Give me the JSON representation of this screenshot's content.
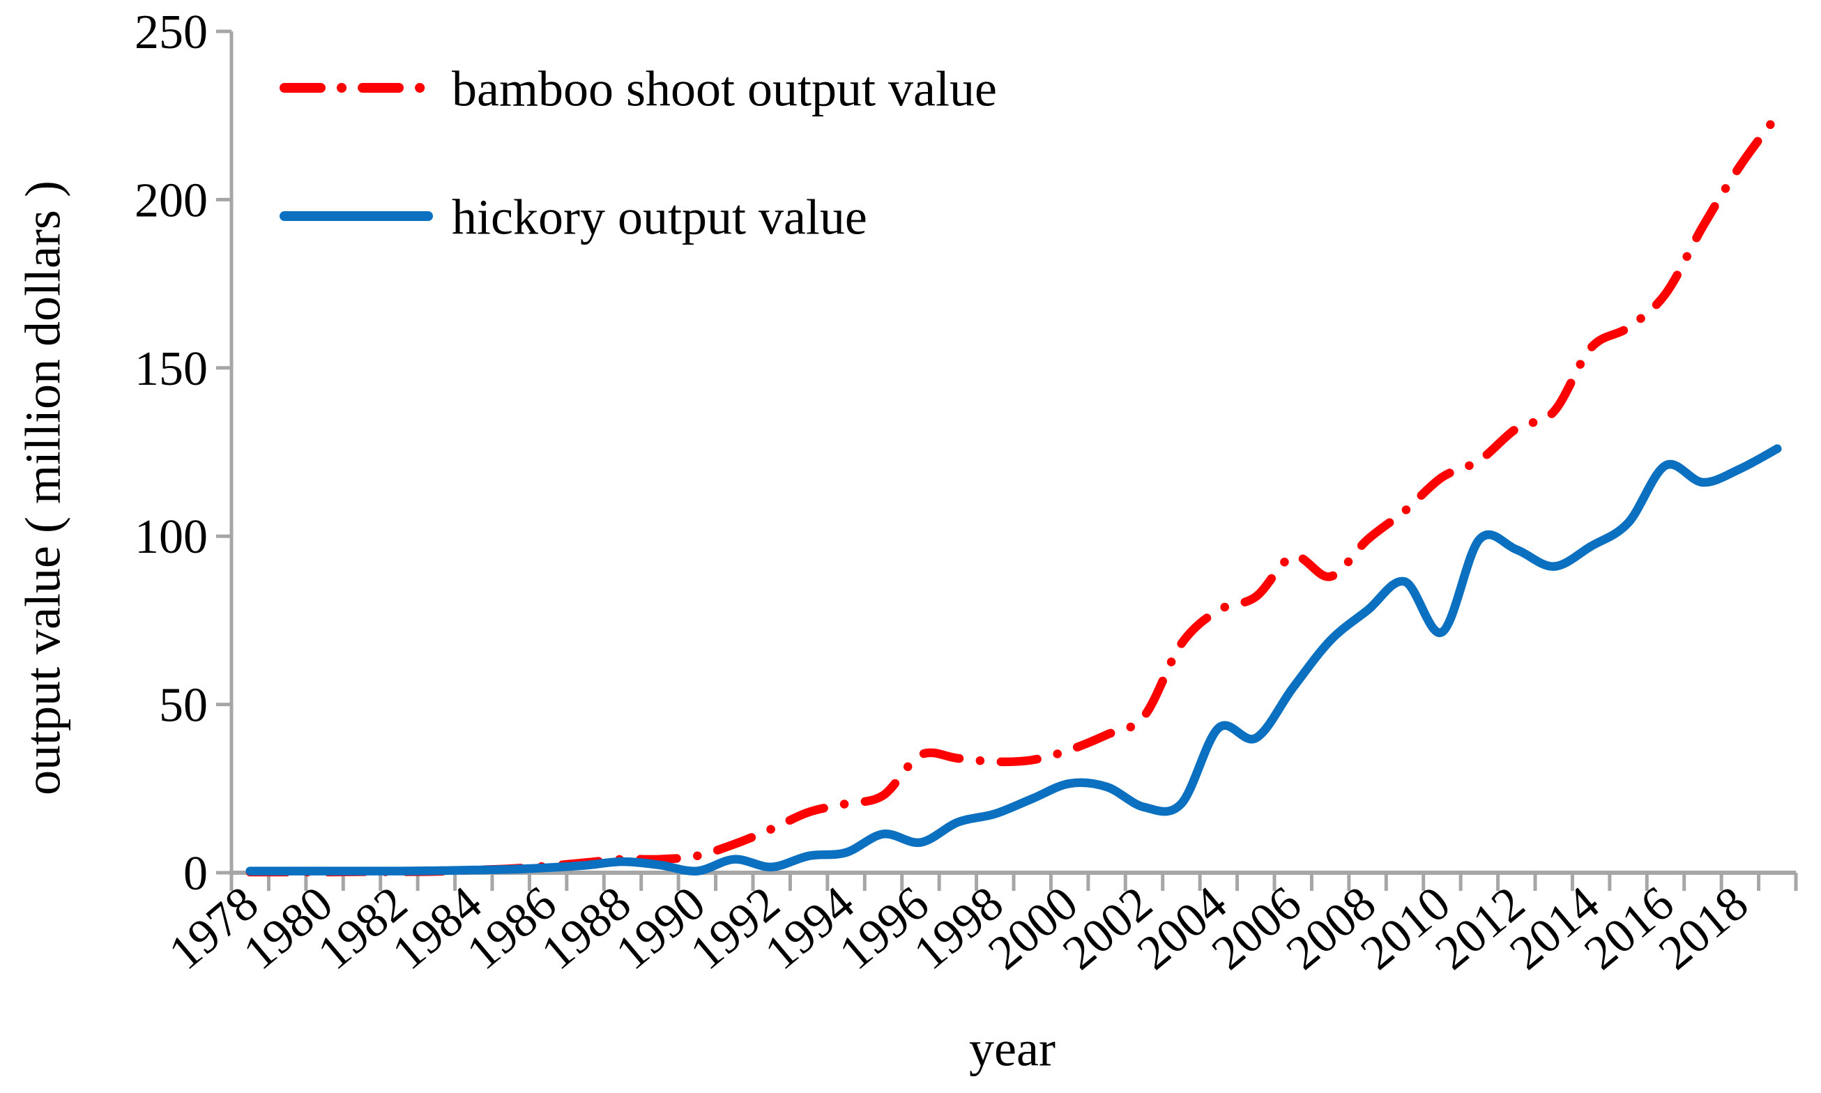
{
  "chart_data": {
    "type": "line",
    "title": "",
    "xlabel": "year",
    "ylabel": "output value ( million dollars )",
    "ylim": [
      0,
      250
    ],
    "yticks": [
      0,
      50,
      100,
      150,
      200,
      250
    ],
    "grid": false,
    "legend_position": "top-left-inside",
    "axis_color": "#A6A6A6",
    "text_color": "#000000",
    "x_label_every": 2,
    "x_labels_shown": [
      "1978",
      "1980",
      "1982",
      "1984",
      "1986",
      "1988",
      "1990",
      "1992",
      "1994",
      "1996",
      "1998",
      "2000",
      "2002",
      "2004",
      "2006",
      "2008",
      "2010",
      "2012",
      "2014",
      "2016",
      "2018"
    ],
    "x": [
      1978,
      1979,
      1980,
      1981,
      1982,
      1983,
      1984,
      1985,
      1986,
      1987,
      1988,
      1989,
      1990,
      1991,
      1992,
      1993,
      1994,
      1995,
      1996,
      1997,
      1998,
      1999,
      2000,
      2001,
      2002,
      2003,
      2004,
      2005,
      2006,
      2007,
      2008,
      2009,
      2010,
      2011,
      2012,
      2013,
      2014,
      2015,
      2016,
      2017,
      2018,
      2019
    ],
    "series": [
      {
        "name": "bamboo shoot output value",
        "color": "#FF0000",
        "style": "dash-dot",
        "values": [
          0.2,
          0.2,
          0.2,
          0.3,
          0.3,
          0.4,
          0.8,
          1.2,
          2,
          3,
          4,
          4,
          5,
          8.5,
          13,
          18,
          20.5,
          23,
          35,
          34,
          33,
          33.5,
          36.5,
          41,
          46.5,
          68,
          78,
          82,
          94,
          88,
          99,
          107.5,
          117.5,
          122.5,
          132,
          137,
          156,
          162,
          172,
          192,
          210,
          225
        ]
      },
      {
        "name": "hickory output value",
        "color": "#0B70C0",
        "style": "solid",
        "values": [
          0.5,
          0.5,
          0.5,
          0.5,
          0.5,
          0.6,
          0.8,
          1,
          1.5,
          2.2,
          3.3,
          2.3,
          0.5,
          4,
          1.7,
          5,
          6,
          11.5,
          9,
          15,
          17.5,
          22,
          26.5,
          25.5,
          19.5,
          20.5,
          43,
          40,
          55,
          69,
          78,
          86.5,
          71.5,
          99,
          96,
          91,
          97,
          104,
          121,
          116,
          120,
          126
        ]
      }
    ]
  }
}
